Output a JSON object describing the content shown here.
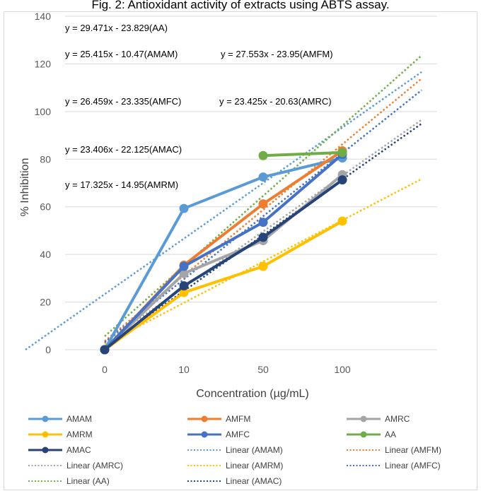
{
  "chart_data": {
    "type": "line",
    "title": "Fig. 2: Antioxidant activity of extracts using ABTS assay.",
    "xlabel": "Concentration (µg/mL)",
    "ylabel": "% Inhibition",
    "categories": [
      "0",
      "10",
      "50",
      "100"
    ],
    "ylim": [
      0,
      140
    ],
    "yticks": [
      0,
      20,
      40,
      60,
      80,
      100,
      120,
      140
    ],
    "grid": "horizontal",
    "legend_position": "bottom",
    "series": [
      {
        "name": "AMAM",
        "color": "#5b9bd5",
        "values": [
          0,
          59.3,
          72.5,
          80.5
        ]
      },
      {
        "name": "AMFM",
        "color": "#ed7d31",
        "values": [
          0,
          35.5,
          61.2,
          83.5
        ]
      },
      {
        "name": "AMRC",
        "color": "#a5a5a5",
        "values": [
          0,
          32.0,
          45.8,
          73.5
        ]
      },
      {
        "name": "AMRM",
        "color": "#ffc000",
        "values": [
          0,
          24.0,
          35.0,
          54.0
        ]
      },
      {
        "name": "AMFC",
        "color": "#4472c4",
        "values": [
          0,
          35.0,
          53.5,
          82.0
        ]
      },
      {
        "name": "AA",
        "color": "#70ad47",
        "values": [
          null,
          null,
          81.5,
          82.8
        ]
      },
      {
        "name": "AMAC",
        "color": "#264478",
        "values": [
          0,
          26.8,
          47.2,
          71.3
        ]
      }
    ],
    "trendlines": [
      {
        "name": "Linear (AMAM)",
        "series": "AMAM",
        "color": "#5b9bd5",
        "slope": 25.415,
        "intercept": -10.47,
        "x_from": 0,
        "x_to": 5
      },
      {
        "name": "Linear (AMFM)",
        "series": "AMFM",
        "color": "#ed7d31",
        "slope": 27.553,
        "intercept": -23.95,
        "x_from": 1,
        "x_to": 5
      },
      {
        "name": "Linear (AMRC)",
        "series": "AMRC",
        "color": "#a5a5a5",
        "slope": 23.425,
        "intercept": -20.63,
        "x_from": 1,
        "x_to": 5
      },
      {
        "name": "Linear (AMRM)",
        "series": "AMRM",
        "color": "#ffc000",
        "slope": 17.325,
        "intercept": -14.95,
        "x_from": 1,
        "x_to": 5
      },
      {
        "name": "Linear (AMFC)",
        "series": "AMFC",
        "color": "#4472c4",
        "slope": 26.459,
        "intercept": -23.335,
        "x_from": 1,
        "x_to": 5
      },
      {
        "name": "Linear (AA)",
        "series": "AA",
        "color": "#70ad47",
        "slope": 29.471,
        "intercept": -23.829,
        "x_from": 1,
        "x_to": 5
      },
      {
        "name": "Linear (AMAC)",
        "series": "AMAC",
        "color": "#264478",
        "slope": 23.406,
        "intercept": -22.125,
        "x_from": 1,
        "x_to": 5
      }
    ],
    "equations": [
      "y = 29.471x - 23.829(AA)",
      "y = 25.415x - 10.47(AMAM)",
      "y = 27.553x - 23.95(AMFM)",
      "y = 26.459x - 23.335(AMFC)",
      "y = 23.425x - 20.63(AMRC)",
      "y = 23.406x - 22.125(AMAC)",
      "y = 17.325x - 14.95(AMRM)"
    ],
    "legend": [
      "AMAM",
      "AMFM",
      "AMRC",
      "AMRM",
      "AMFC",
      "AA",
      "AMAC",
      "Linear (AMAM)",
      "Linear (AMFM)",
      "Linear (AMRC)",
      "Linear (AMRM)",
      "Linear (AMFC)",
      "Linear (AA)",
      "Linear (AMAC)"
    ]
  }
}
